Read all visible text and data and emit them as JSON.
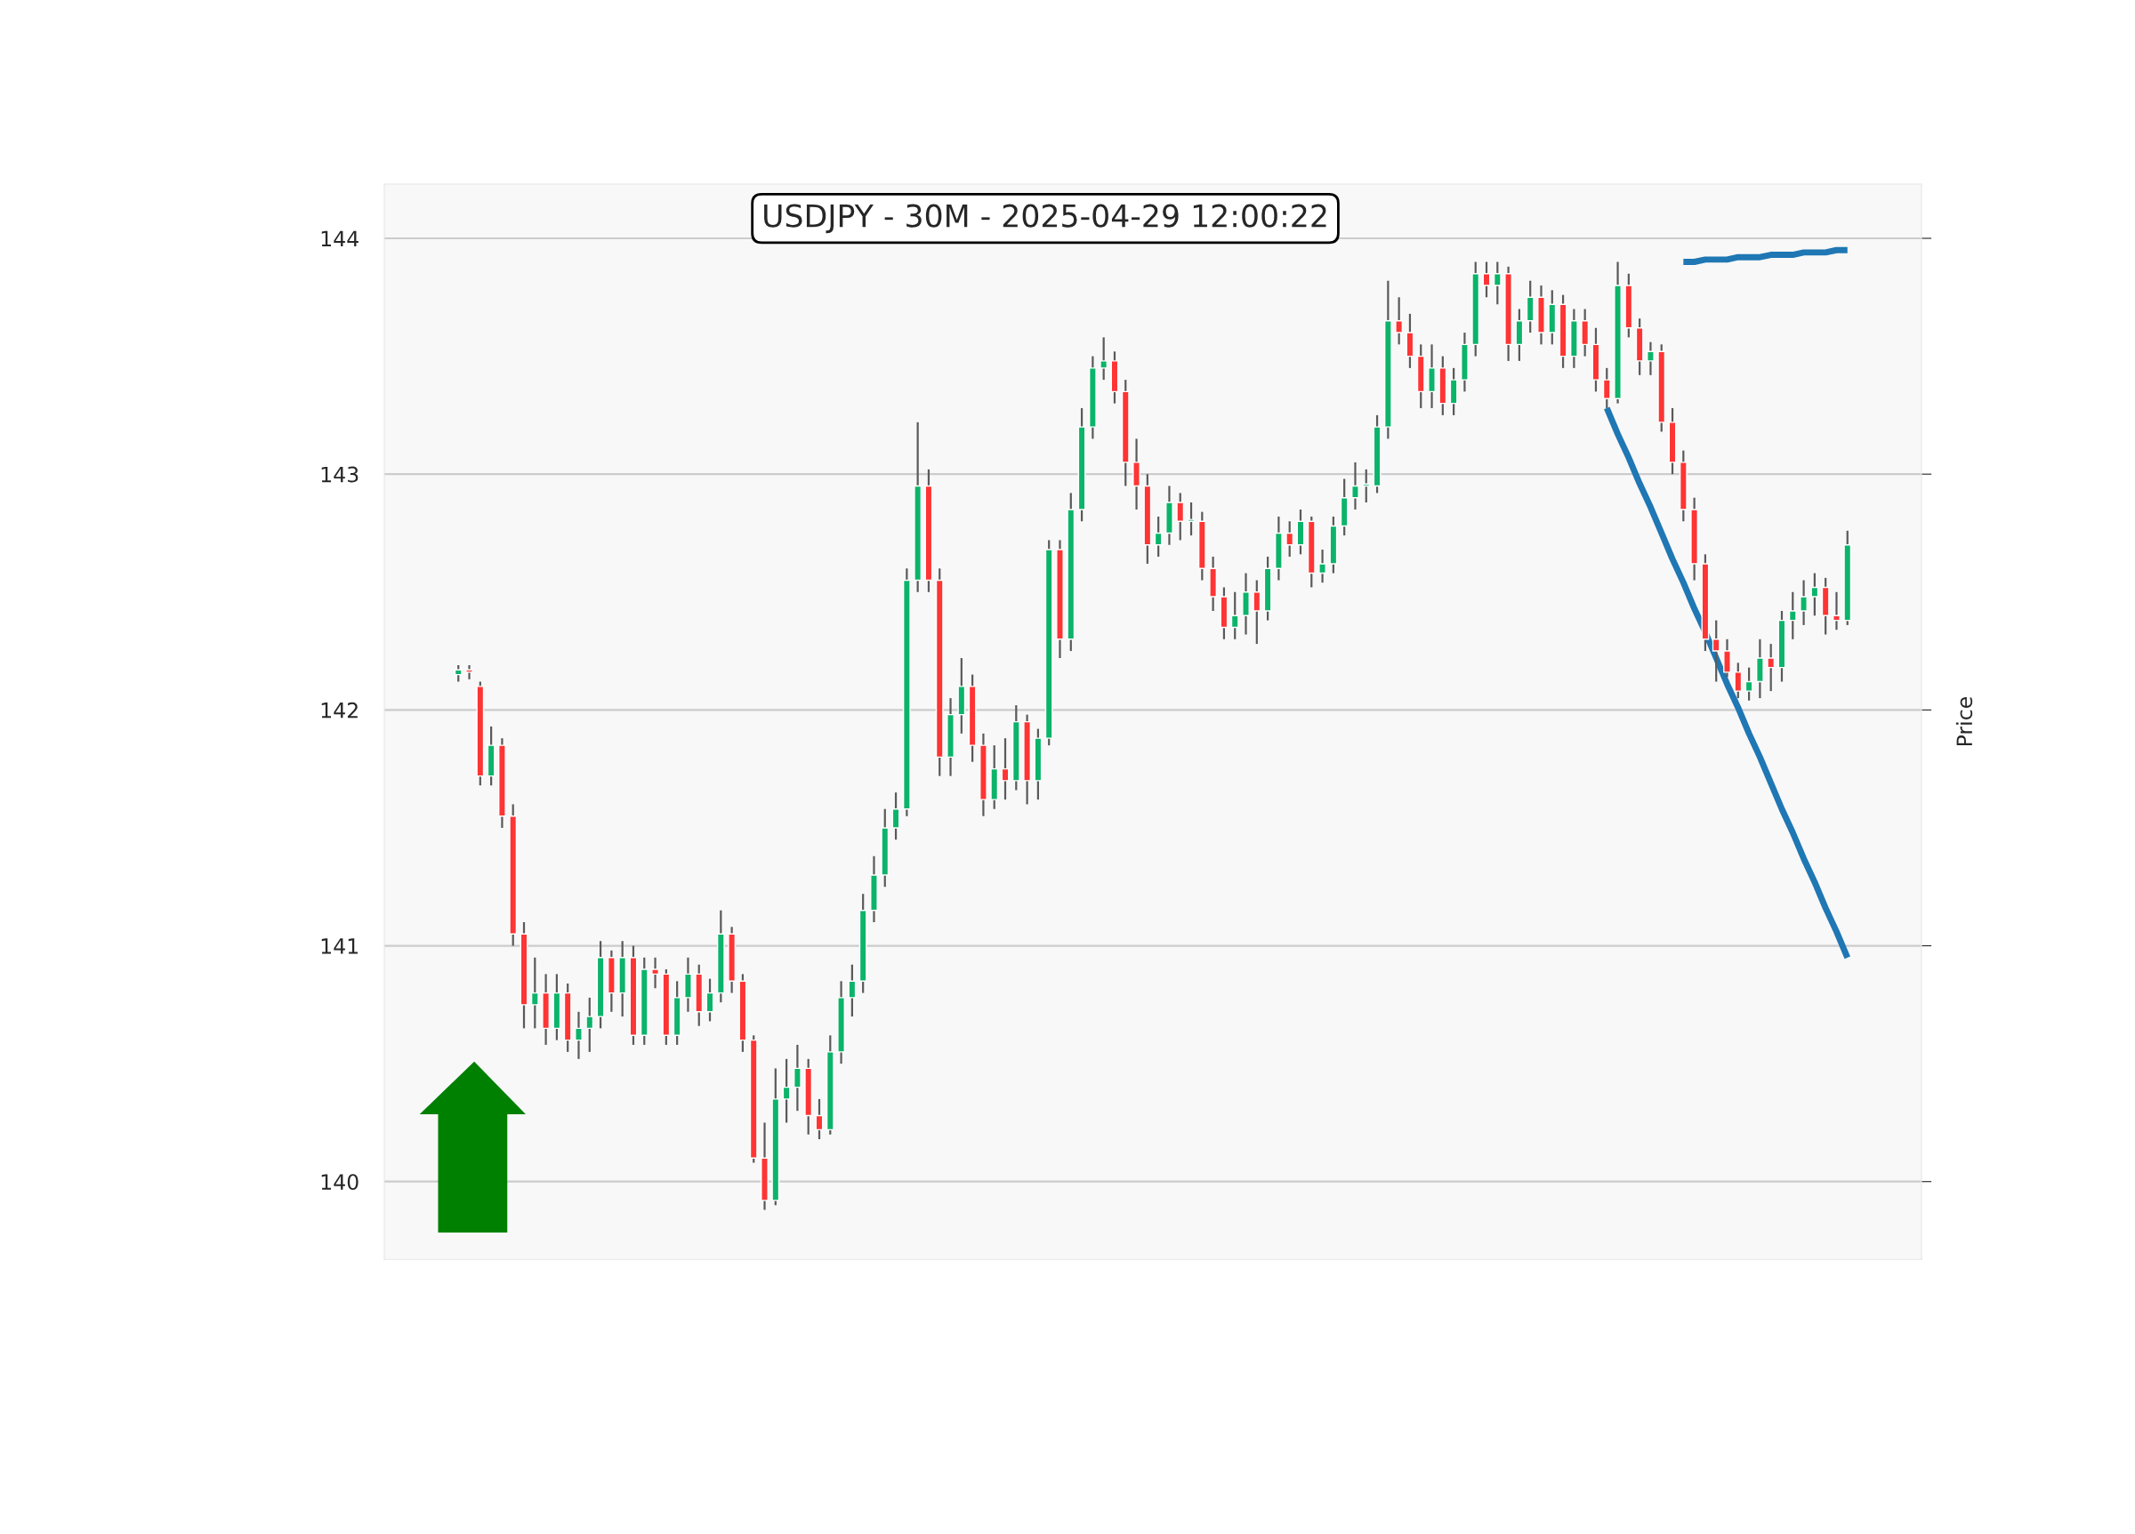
{
  "chart_data": {
    "type": "candlestick",
    "title": "USDJPY - 30M - 2025-04-29 12:00:22",
    "ylabel": "Price",
    "categories": [
      null,
      null,
      null,
      null,
      null,
      null,
      null,
      null,
      null,
      null,
      null,
      null,
      null,
      null,
      null,
      null,
      null,
      null,
      null,
      null,
      null,
      null,
      null,
      null,
      null,
      null,
      null,
      null,
      null,
      null,
      null,
      null,
      null,
      null,
      null,
      null,
      null,
      null,
      null,
      null,
      null,
      null,
      null,
      null,
      null,
      null,
      null,
      null,
      null,
      null,
      null,
      null,
      null,
      null,
      null,
      null,
      null,
      null,
      null,
      null,
      null,
      null,
      null,
      null,
      null,
      null,
      null,
      null,
      null,
      null,
      null,
      null,
      null,
      null,
      null,
      null,
      null,
      null,
      null,
      null,
      null,
      null,
      null,
      null,
      null,
      null,
      null,
      null,
      null,
      null,
      null,
      null,
      null,
      null,
      null,
      null,
      null,
      null,
      null,
      null,
      null,
      null,
      null,
      null,
      null,
      null,
      null,
      null,
      null,
      null,
      null,
      null,
      null,
      null,
      null,
      null,
      null,
      null,
      null,
      null,
      null,
      null,
      null,
      null,
      null,
      null,
      null,
      null
    ],
    "ohlc": [
      [
        142.15,
        142.19,
        142.12,
        142.17
      ],
      [
        142.17,
        142.19,
        142.13,
        142.16
      ],
      [
        142.1,
        142.12,
        141.68,
        141.72
      ],
      [
        141.72,
        141.93,
        141.68,
        141.85
      ],
      [
        141.85,
        141.88,
        141.5,
        141.55
      ],
      [
        141.55,
        141.6,
        141.0,
        141.05
      ],
      [
        141.05,
        141.1,
        140.65,
        140.75
      ],
      [
        140.75,
        140.95,
        140.65,
        140.8
      ],
      [
        140.8,
        140.88,
        140.58,
        140.65
      ],
      [
        140.65,
        140.88,
        140.6,
        140.8
      ],
      [
        140.8,
        140.84,
        140.55,
        140.6
      ],
      [
        140.6,
        140.72,
        140.52,
        140.65
      ],
      [
        140.65,
        140.78,
        140.55,
        140.7
      ],
      [
        140.7,
        141.02,
        140.65,
        140.95
      ],
      [
        140.95,
        140.98,
        140.72,
        140.8
      ],
      [
        140.8,
        141.02,
        140.7,
        140.95
      ],
      [
        140.95,
        141.0,
        140.58,
        140.62
      ],
      [
        140.62,
        140.95,
        140.58,
        140.9
      ],
      [
        140.9,
        140.95,
        140.82,
        140.88
      ],
      [
        140.88,
        140.9,
        140.58,
        140.62
      ],
      [
        140.62,
        140.85,
        140.58,
        140.78
      ],
      [
        140.78,
        140.95,
        140.72,
        140.88
      ],
      [
        140.88,
        140.92,
        140.66,
        140.72
      ],
      [
        140.72,
        140.86,
        140.68,
        140.8
      ],
      [
        140.8,
        141.15,
        140.76,
        141.05
      ],
      [
        141.05,
        141.08,
        140.8,
        140.85
      ],
      [
        140.85,
        140.88,
        140.55,
        140.6
      ],
      [
        140.6,
        140.62,
        140.08,
        140.1
      ],
      [
        140.1,
        140.25,
        139.88,
        139.92
      ],
      [
        139.92,
        140.48,
        139.9,
        140.35
      ],
      [
        140.35,
        140.52,
        140.25,
        140.4
      ],
      [
        140.4,
        140.58,
        140.3,
        140.48
      ],
      [
        140.48,
        140.52,
        140.2,
        140.28
      ],
      [
        140.28,
        140.35,
        140.18,
        140.22
      ],
      [
        140.22,
        140.62,
        140.2,
        140.55
      ],
      [
        140.55,
        140.85,
        140.5,
        140.78
      ],
      [
        140.78,
        140.92,
        140.7,
        140.85
      ],
      [
        140.85,
        141.22,
        140.8,
        141.15
      ],
      [
        141.15,
        141.38,
        141.1,
        141.3
      ],
      [
        141.3,
        141.58,
        141.25,
        141.5
      ],
      [
        141.5,
        141.65,
        141.45,
        141.58
      ],
      [
        141.58,
        142.6,
        141.55,
        142.55
      ],
      [
        142.55,
        143.22,
        142.5,
        142.95
      ],
      [
        142.95,
        143.02,
        142.5,
        142.55
      ],
      [
        142.55,
        142.6,
        141.72,
        141.8
      ],
      [
        141.8,
        142.05,
        141.72,
        141.98
      ],
      [
        141.98,
        142.22,
        141.9,
        142.1
      ],
      [
        142.1,
        142.15,
        141.78,
        141.85
      ],
      [
        141.85,
        141.9,
        141.55,
        141.62
      ],
      [
        141.62,
        141.85,
        141.58,
        141.75
      ],
      [
        141.75,
        141.88,
        141.62,
        141.7
      ],
      [
        141.7,
        142.02,
        141.66,
        141.95
      ],
      [
        141.95,
        141.98,
        141.6,
        141.7
      ],
      [
        141.7,
        141.92,
        141.62,
        141.88
      ],
      [
        141.88,
        142.72,
        141.85,
        142.68
      ],
      [
        142.68,
        142.72,
        142.22,
        142.3
      ],
      [
        142.3,
        142.92,
        142.25,
        142.85
      ],
      [
        142.85,
        143.28,
        142.8,
        143.2
      ],
      [
        143.2,
        143.5,
        143.15,
        143.45
      ],
      [
        143.45,
        143.58,
        143.4,
        143.48
      ],
      [
        143.48,
        143.52,
        143.3,
        143.35
      ],
      [
        143.35,
        143.4,
        142.95,
        143.05
      ],
      [
        143.05,
        143.15,
        142.85,
        142.95
      ],
      [
        142.95,
        143.0,
        142.62,
        142.7
      ],
      [
        142.7,
        142.82,
        142.65,
        142.75
      ],
      [
        142.75,
        142.95,
        142.7,
        142.88
      ],
      [
        142.88,
        142.92,
        142.72,
        142.8
      ],
      [
        142.8,
        142.88,
        142.74,
        142.8
      ],
      [
        142.8,
        142.84,
        142.55,
        142.6
      ],
      [
        142.6,
        142.65,
        142.42,
        142.48
      ],
      [
        142.48,
        142.52,
        142.3,
        142.35
      ],
      [
        142.35,
        142.5,
        142.3,
        142.4
      ],
      [
        142.4,
        142.58,
        142.32,
        142.5
      ],
      [
        142.5,
        142.55,
        142.28,
        142.42
      ],
      [
        142.42,
        142.65,
        142.38,
        142.6
      ],
      [
        142.6,
        142.82,
        142.55,
        142.75
      ],
      [
        142.75,
        142.8,
        142.65,
        142.7
      ],
      [
        142.7,
        142.85,
        142.66,
        142.8
      ],
      [
        142.8,
        142.82,
        142.52,
        142.58
      ],
      [
        142.58,
        142.68,
        142.54,
        142.62
      ],
      [
        142.62,
        142.82,
        142.58,
        142.78
      ],
      [
        142.78,
        142.98,
        142.74,
        142.9
      ],
      [
        142.9,
        143.05,
        142.85,
        142.95
      ],
      [
        142.95,
        143.02,
        142.88,
        142.95
      ],
      [
        142.95,
        143.25,
        142.92,
        143.2
      ],
      [
        143.2,
        143.82,
        143.15,
        143.65
      ],
      [
        143.65,
        143.75,
        143.55,
        143.6
      ],
      [
        143.6,
        143.68,
        143.45,
        143.5
      ],
      [
        143.5,
        143.55,
        143.28,
        143.35
      ],
      [
        143.35,
        143.55,
        143.28,
        143.45
      ],
      [
        143.45,
        143.5,
        143.25,
        143.3
      ],
      [
        143.3,
        143.45,
        143.25,
        143.4
      ],
      [
        143.4,
        143.6,
        143.35,
        143.55
      ],
      [
        143.55,
        143.9,
        143.5,
        143.85
      ],
      [
        143.85,
        143.9,
        143.75,
        143.8
      ],
      [
        143.8,
        143.9,
        143.72,
        143.85
      ],
      [
        143.85,
        143.88,
        143.48,
        143.55
      ],
      [
        143.55,
        143.7,
        143.48,
        143.65
      ],
      [
        143.65,
        143.82,
        143.6,
        143.75
      ],
      [
        143.75,
        143.8,
        143.55,
        143.6
      ],
      [
        143.6,
        143.78,
        143.55,
        143.72
      ],
      [
        143.72,
        143.76,
        143.45,
        143.5
      ],
      [
        143.5,
        143.7,
        143.45,
        143.65
      ],
      [
        143.65,
        143.7,
        143.5,
        143.55
      ],
      [
        143.55,
        143.62,
        143.35,
        143.4
      ],
      [
        143.4,
        143.45,
        143.28,
        143.32
      ],
      [
        143.32,
        143.9,
        143.3,
        143.8
      ],
      [
        143.8,
        143.85,
        143.58,
        143.62
      ],
      [
        143.62,
        143.66,
        143.42,
        143.48
      ],
      [
        143.48,
        143.56,
        143.42,
        143.52
      ],
      [
        143.52,
        143.55,
        143.18,
        143.22
      ],
      [
        143.22,
        143.28,
        143.0,
        143.05
      ],
      [
        143.05,
        143.1,
        142.8,
        142.85
      ],
      [
        142.85,
        142.9,
        142.55,
        142.62
      ],
      [
        142.62,
        142.66,
        142.25,
        142.3
      ],
      [
        142.3,
        142.38,
        142.12,
        142.25
      ],
      [
        142.25,
        142.3,
        142.14,
        142.16
      ],
      [
        142.16,
        142.2,
        142.05,
        142.08
      ],
      [
        142.08,
        142.18,
        142.04,
        142.12
      ],
      [
        142.12,
        142.3,
        142.05,
        142.22
      ],
      [
        142.22,
        142.28,
        142.08,
        142.18
      ],
      [
        142.18,
        142.42,
        142.12,
        142.38
      ],
      [
        142.38,
        142.5,
        142.3,
        142.42
      ],
      [
        142.42,
        142.55,
        142.36,
        142.48
      ],
      [
        142.48,
        142.58,
        142.4,
        142.52
      ],
      [
        142.52,
        142.56,
        142.32,
        142.4
      ],
      [
        142.4,
        142.5,
        142.34,
        142.38
      ],
      [
        142.38,
        142.76,
        142.36,
        142.7
      ]
    ],
    "series": [
      {
        "type": "line",
        "color": "#1f77b4",
        "values": [
          null,
          null,
          null,
          null,
          null,
          null,
          null,
          null,
          null,
          null,
          null,
          null,
          null,
          null,
          null,
          null,
          null,
          null,
          null,
          null,
          null,
          null,
          null,
          null,
          null,
          null,
          null,
          null,
          null,
          null,
          null,
          null,
          null,
          null,
          null,
          null,
          null,
          null,
          null,
          null,
          null,
          null,
          null,
          null,
          null,
          null,
          null,
          null,
          null,
          null,
          null,
          null,
          null,
          null,
          null,
          null,
          null,
          null,
          null,
          null,
          null,
          null,
          null,
          null,
          null,
          null,
          null,
          null,
          null,
          null,
          null,
          null,
          null,
          null,
          null,
          null,
          null,
          null,
          null,
          null,
          null,
          null,
          null,
          null,
          null,
          null,
          null,
          null,
          null,
          null,
          null,
          null,
          null,
          null,
          null,
          null,
          null,
          null,
          null,
          null,
          null,
          null,
          null,
          null,
          null,
          143.28,
          143.17,
          143.07,
          142.96,
          142.86,
          142.75,
          142.64,
          142.54,
          142.43,
          142.33,
          142.22,
          142.11,
          142.01,
          141.9,
          141.8,
          141.69,
          141.58,
          141.48,
          141.37,
          141.27,
          141.16,
          141.06,
          140.95
        ]
      },
      {
        "type": "line",
        "color": "#1f77b4",
        "values": [
          null,
          null,
          null,
          null,
          null,
          null,
          null,
          null,
          null,
          null,
          null,
          null,
          null,
          null,
          null,
          null,
          null,
          null,
          null,
          null,
          null,
          null,
          null,
          null,
          null,
          null,
          null,
          null,
          null,
          null,
          null,
          null,
          null,
          null,
          null,
          null,
          null,
          null,
          null,
          null,
          null,
          null,
          null,
          null,
          null,
          null,
          null,
          null,
          null,
          null,
          null,
          null,
          null,
          null,
          null,
          null,
          null,
          null,
          null,
          null,
          null,
          null,
          null,
          null,
          null,
          null,
          null,
          null,
          null,
          null,
          null,
          null,
          null,
          null,
          null,
          null,
          null,
          null,
          null,
          null,
          null,
          null,
          null,
          null,
          null,
          null,
          null,
          null,
          null,
          null,
          null,
          null,
          null,
          null,
          null,
          null,
          null,
          null,
          null,
          null,
          null,
          null,
          null,
          null,
          null,
          null,
          null,
          null,
          null,
          null,
          null,
          null,
          143.9,
          143.9,
          143.91,
          143.91,
          143.91,
          143.92,
          143.92,
          143.92,
          143.93,
          143.93,
          143.93,
          143.94,
          143.94,
          143.94,
          143.95,
          143.95
        ]
      }
    ],
    "ylim": [
      139.67,
      144.23
    ],
    "yticks": [
      140,
      141,
      142,
      143,
      144
    ],
    "grid": "y",
    "tick_labels": "y"
  }
}
